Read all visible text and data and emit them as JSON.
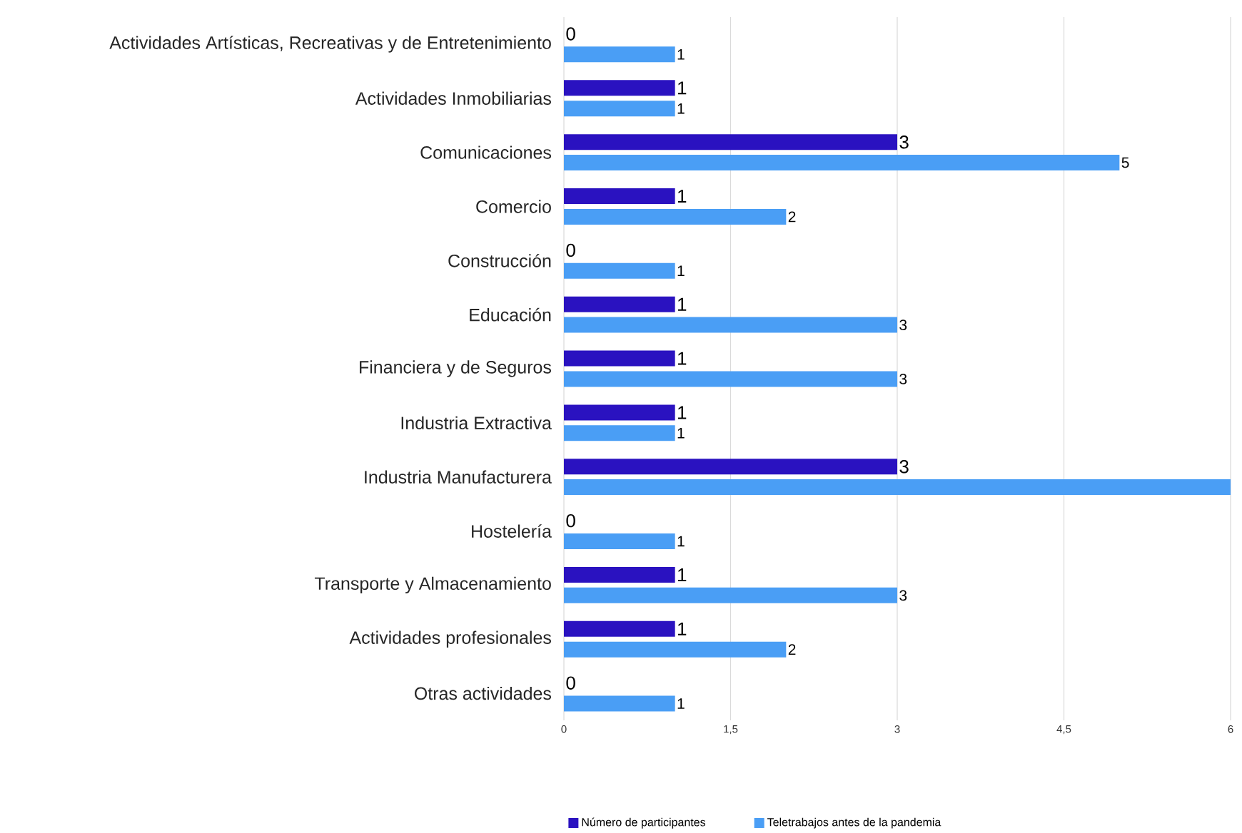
{
  "chart_data": {
    "type": "bar",
    "orientation": "horizontal",
    "categories": [
      "Actividades Artísticas, Recreativas y de Entretenimiento",
      "Actividades Inmobiliarias",
      "Comunicaciones",
      "Comercio",
      "Construcción",
      "Educación",
      "Financiera y de Seguros",
      "Industria Extractiva",
      "Industria Manufacturera",
      "Hostelería",
      "Transporte y Almacenamiento",
      "Actividades profesionales",
      "Otras actividades"
    ],
    "series": [
      {
        "name": "Número de participantes",
        "color": "#2a12c0",
        "values": [
          0,
          1,
          3,
          1,
          0,
          1,
          1,
          1,
          3,
          0,
          1,
          1,
          0
        ],
        "value_labels": [
          "0",
          "1",
          "3",
          "1",
          "0",
          "1",
          "1",
          "1",
          "3",
          "0",
          "1",
          "1",
          "0"
        ]
      },
      {
        "name": "Teletrabajos antes de la pandemia",
        "color": "#4a9ef5",
        "values": [
          1,
          1,
          5,
          2,
          1,
          3,
          3,
          1,
          6,
          1,
          3,
          2,
          1
        ],
        "value_labels": [
          "1",
          "1",
          "5",
          "2",
          "1",
          "3",
          "3",
          "1",
          null,
          "1",
          "3",
          "2",
          "1"
        ]
      }
    ],
    "xlim": [
      0,
      6
    ],
    "xticks": [
      0,
      {
        "value": 1.5,
        "label": "1,5"
      },
      3,
      {
        "value": 4.5,
        "label": "4,5"
      },
      6
    ],
    "grid": "x",
    "legend": "bottom"
  }
}
